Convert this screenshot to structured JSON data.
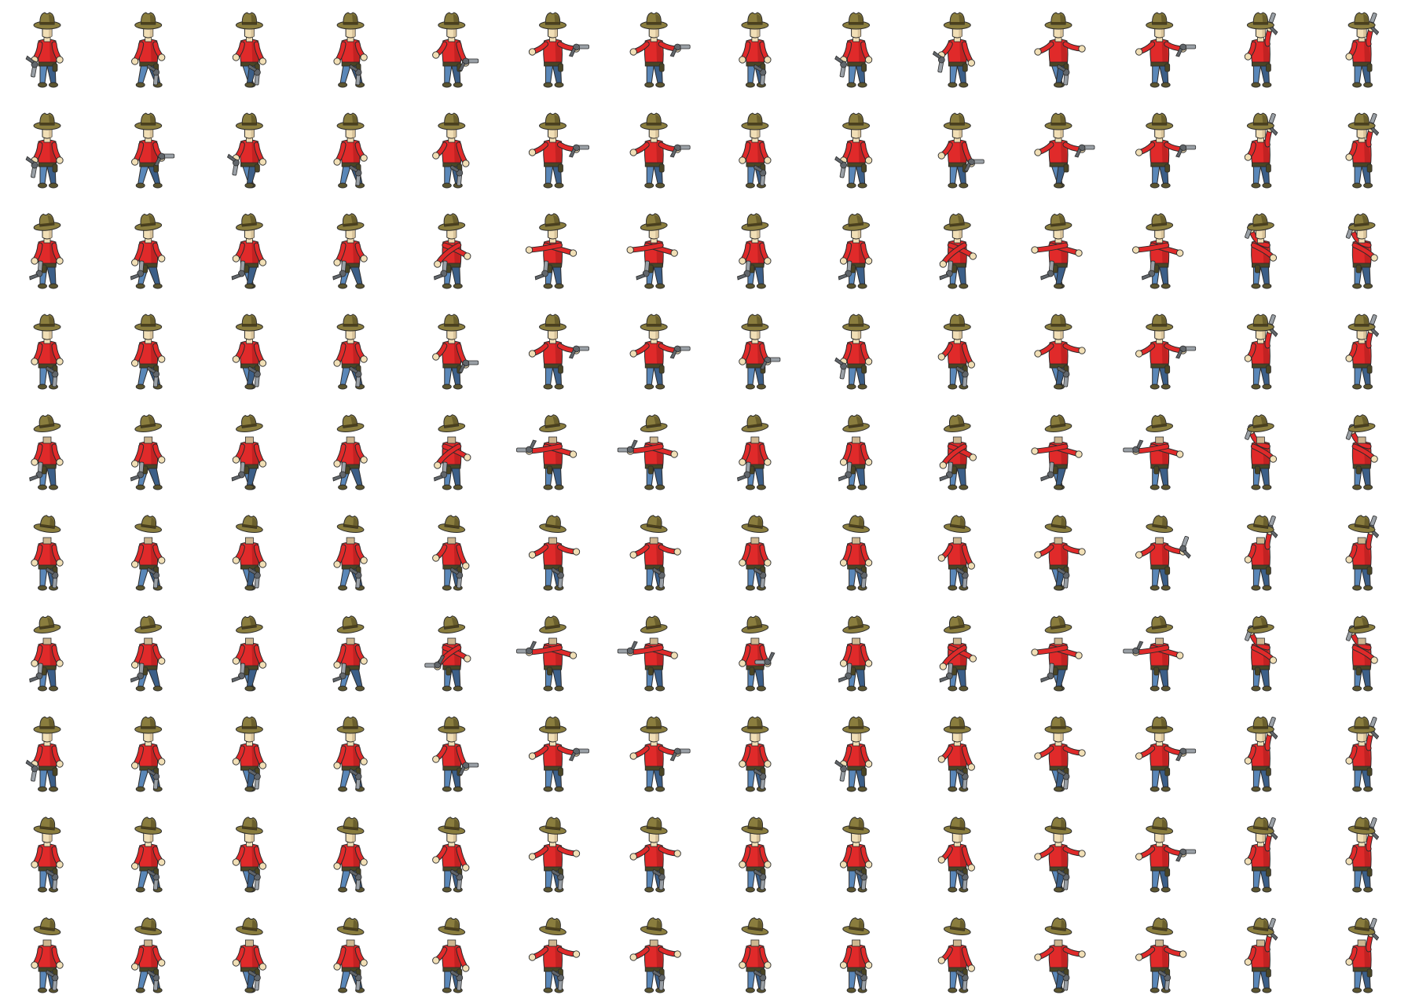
{
  "sprite_sheet": {
    "subject": "cowboy",
    "rows": 10,
    "columns": 14,
    "colors": {
      "background": "#ffffff",
      "hat": "#8a7d3e",
      "hat_shade": "#5c5226",
      "hat_band": "#4a3f1c",
      "face": "#f1dfb6",
      "skin_shade": "#cdb690",
      "shirt": "#e02a2a",
      "shirt_shade": "#a81c1c",
      "belt": "#4a4525",
      "pants": "#5a87b8",
      "pants_shade": "#3c5f88",
      "boots": "#5c5530",
      "gun": "#9aa0a6",
      "gun_dark": "#61666b",
      "outline": "#2b2b2b"
    },
    "poses": [
      "idle",
      "walk",
      "walk",
      "walk",
      "draw",
      "aim",
      "aim",
      "holster",
      "holster",
      "reach",
      "lunge",
      "shoot-sideways",
      "shoot-up",
      "shoot-up"
    ],
    "facing": [
      "front",
      "front",
      "front-left",
      "front",
      "back-left",
      "back",
      "back-left",
      "front",
      "front-right",
      "back-right"
    ],
    "gun_hand": [
      [
        0,
        1,
        1,
        1,
        2,
        2,
        2,
        1,
        0,
        0,
        1,
        2,
        3,
        3
      ],
      [
        0,
        2,
        0,
        1,
        1,
        2,
        2,
        1,
        0,
        2,
        2,
        2,
        3,
        3
      ],
      [
        1,
        1,
        1,
        1,
        1,
        1,
        1,
        1,
        1,
        1,
        1,
        1,
        3,
        3
      ],
      [
        1,
        1,
        1,
        1,
        2,
        2,
        2,
        2,
        0,
        1,
        1,
        2,
        3,
        3
      ],
      [
        1,
        1,
        1,
        1,
        1,
        2,
        2,
        1,
        1,
        1,
        1,
        2,
        3,
        3
      ],
      [
        1,
        1,
        1,
        1,
        1,
        1,
        1,
        1,
        1,
        1,
        1,
        3,
        3,
        3
      ],
      [
        1,
        1,
        1,
        1,
        2,
        2,
        2,
        2,
        1,
        1,
        1,
        2,
        3,
        3
      ],
      [
        0,
        1,
        1,
        1,
        2,
        2,
        2,
        1,
        0,
        1,
        1,
        2,
        3,
        3
      ],
      [
        1,
        1,
        1,
        1,
        1,
        1,
        1,
        1,
        1,
        1,
        1,
        2,
        3,
        3
      ],
      [
        1,
        1,
        1,
        1,
        1,
        1,
        1,
        1,
        1,
        1,
        1,
        1,
        3,
        3
      ]
    ]
  }
}
